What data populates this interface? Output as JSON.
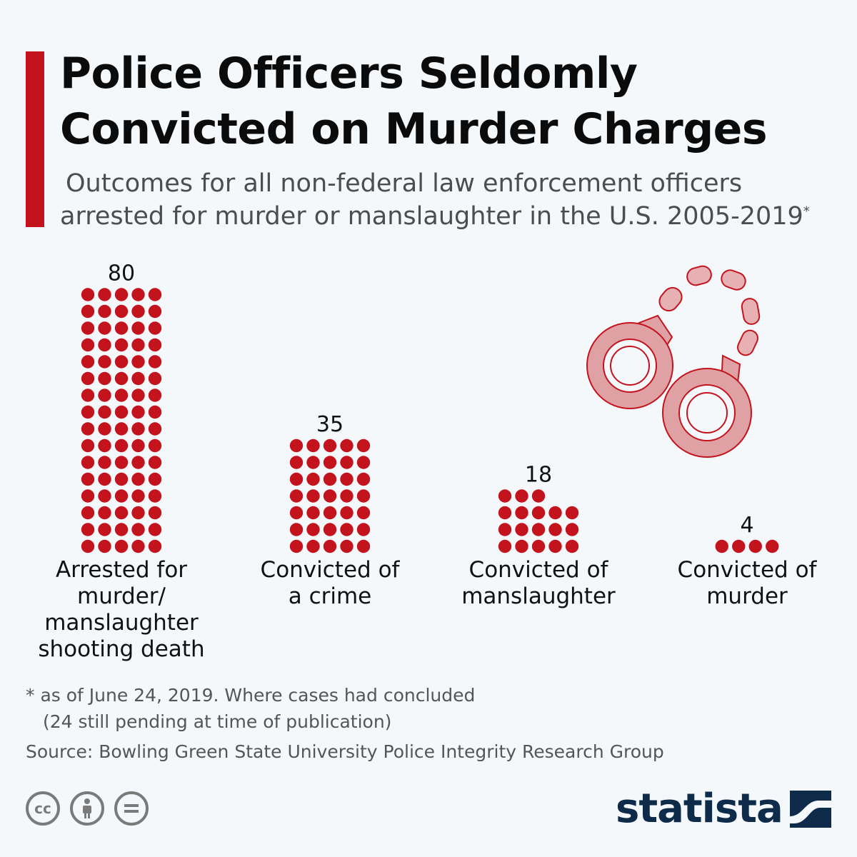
{
  "header": {
    "title_line1": "Police Officers Seldomly",
    "title_line2": "Convicted on Murder Charges",
    "subtitle_line1": "Outcomes for all non-federal law enforcement officers",
    "subtitle_line2": "arrested for murder or manslaughter in the U.S. 2005-2019",
    "subtitle_marker": "*"
  },
  "colors": {
    "accent": "#c3141d",
    "dot": "#c3141d",
    "handcuffs": "#e0a1a4",
    "brand": "#0f2b4a"
  },
  "chart_data": {
    "type": "pictogram-bar",
    "categories": [
      "Arrested for murder/ manslaughter shooting death",
      "Convicted of a crime",
      "Convicted of manslaughter",
      "Convicted of murder"
    ],
    "category_lines": [
      [
        "Arrested for",
        "murder/",
        "manslaughter",
        "shooting death"
      ],
      [
        "Convicted of",
        "a crime"
      ],
      [
        "Convicted of",
        "manslaughter"
      ],
      [
        "Convicted of",
        "murder"
      ]
    ],
    "values": [
      80,
      35,
      18,
      4
    ],
    "value_labels": [
      "80",
      "35",
      "18",
      "4"
    ],
    "dots_per_row": 5,
    "units_per_dot": 1
  },
  "decoration": {
    "image": "handcuffs-icon"
  },
  "footnote": {
    "line1": "* as of June 24, 2019. Where cases had concluded",
    "line2": "(24 still pending at time of publication)"
  },
  "source": "Source: Bowling Green State University Police Integrity Research Group",
  "license_icons": [
    "cc-icon",
    "attribution-icon",
    "no-derivatives-icon"
  ],
  "brand": {
    "name": "statista"
  }
}
